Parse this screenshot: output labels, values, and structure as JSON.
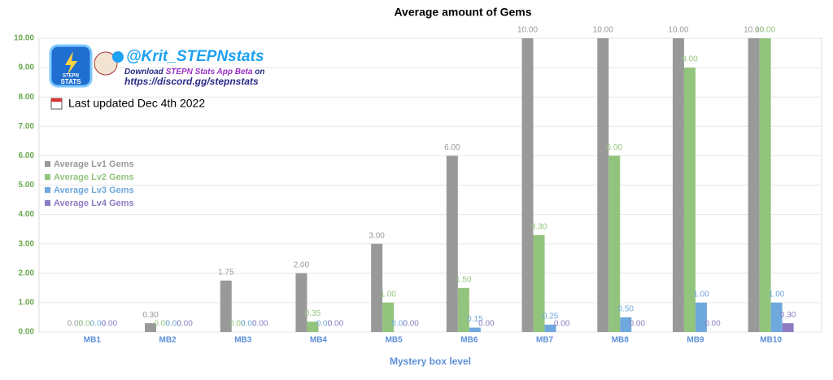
{
  "chart_data": {
    "type": "bar",
    "title": "Average amount of Gems",
    "x_label": "Mystery box level",
    "categories": [
      "MB1",
      "MB2",
      "MB3",
      "MB4",
      "MB5",
      "MB6",
      "MB7",
      "MB8",
      "MB9",
      "MB10"
    ],
    "series": [
      {
        "name": "Average Lv1 Gems",
        "color": "#999999",
        "values": [
          0,
          0.3,
          1.75,
          2,
          3,
          6,
          10,
          10,
          10,
          10
        ],
        "value_labels": [
          "0.00",
          "0.30",
          "1.75",
          "2.00",
          "3.00",
          "6.00",
          "10.00",
          "10.00",
          "10.00",
          "10.00"
        ]
      },
      {
        "name": "Average Lv2 Gems",
        "color": "#93c47d",
        "values": [
          0,
          0,
          0,
          0.35,
          1,
          1.5,
          3.3,
          6,
          9,
          10
        ],
        "value_labels": [
          "0.00",
          "0.00",
          "0.00",
          "0.35",
          "1.00",
          "1.50",
          "3.30",
          "6.00",
          "9.00",
          "10.00"
        ]
      },
      {
        "name": "Average Lv3 Gems",
        "color": "#6fa8dc",
        "values": [
          0,
          0,
          0,
          0,
          0,
          0.15,
          0.25,
          0.5,
          1,
          1
        ],
        "value_labels": [
          "0.00",
          "0.00",
          "0.00",
          "0.00",
          "0.00",
          "0.15",
          "0.25",
          "0.50",
          "1.00",
          "1.00"
        ]
      },
      {
        "name": "Average Lv4 Gems",
        "color": "#8e7cc3",
        "values": [
          0,
          0,
          0,
          0,
          0,
          0,
          0,
          0,
          0,
          0.3
        ],
        "value_labels": [
          "0.00",
          "0.00",
          "0.00",
          "0.00",
          "0.00",
          "0.00",
          "0.00",
          "0.00",
          "0.00",
          "0.30"
        ]
      }
    ],
    "ylim": [
      0,
      10
    ],
    "yticks": [
      {
        "value": 0,
        "label": "0.00"
      },
      {
        "value": 1,
        "label": "1.00"
      },
      {
        "value": 2,
        "label": "2.00"
      },
      {
        "value": 3,
        "label": "3.00"
      },
      {
        "value": 4,
        "label": "4.00"
      },
      {
        "value": 5,
        "label": "5.00"
      },
      {
        "value": 6,
        "label": "6.00"
      },
      {
        "value": 7,
        "label": "7.00"
      },
      {
        "value": 8,
        "label": "8.00"
      },
      {
        "value": 9,
        "label": "9.00"
      },
      {
        "value": 10,
        "label": "10.00"
      }
    ],
    "grid": true,
    "legend": "left",
    "annotations": {
      "logo": [
        "STEPN",
        "STATS"
      ],
      "handle": "@Krit_STEPNstats",
      "download": [
        "Download ",
        "STEPN Stats App Beta",
        " on"
      ],
      "link": "https://discord.gg/stepnstats",
      "updated": "Last updated Dec 4th 2022"
    }
  }
}
